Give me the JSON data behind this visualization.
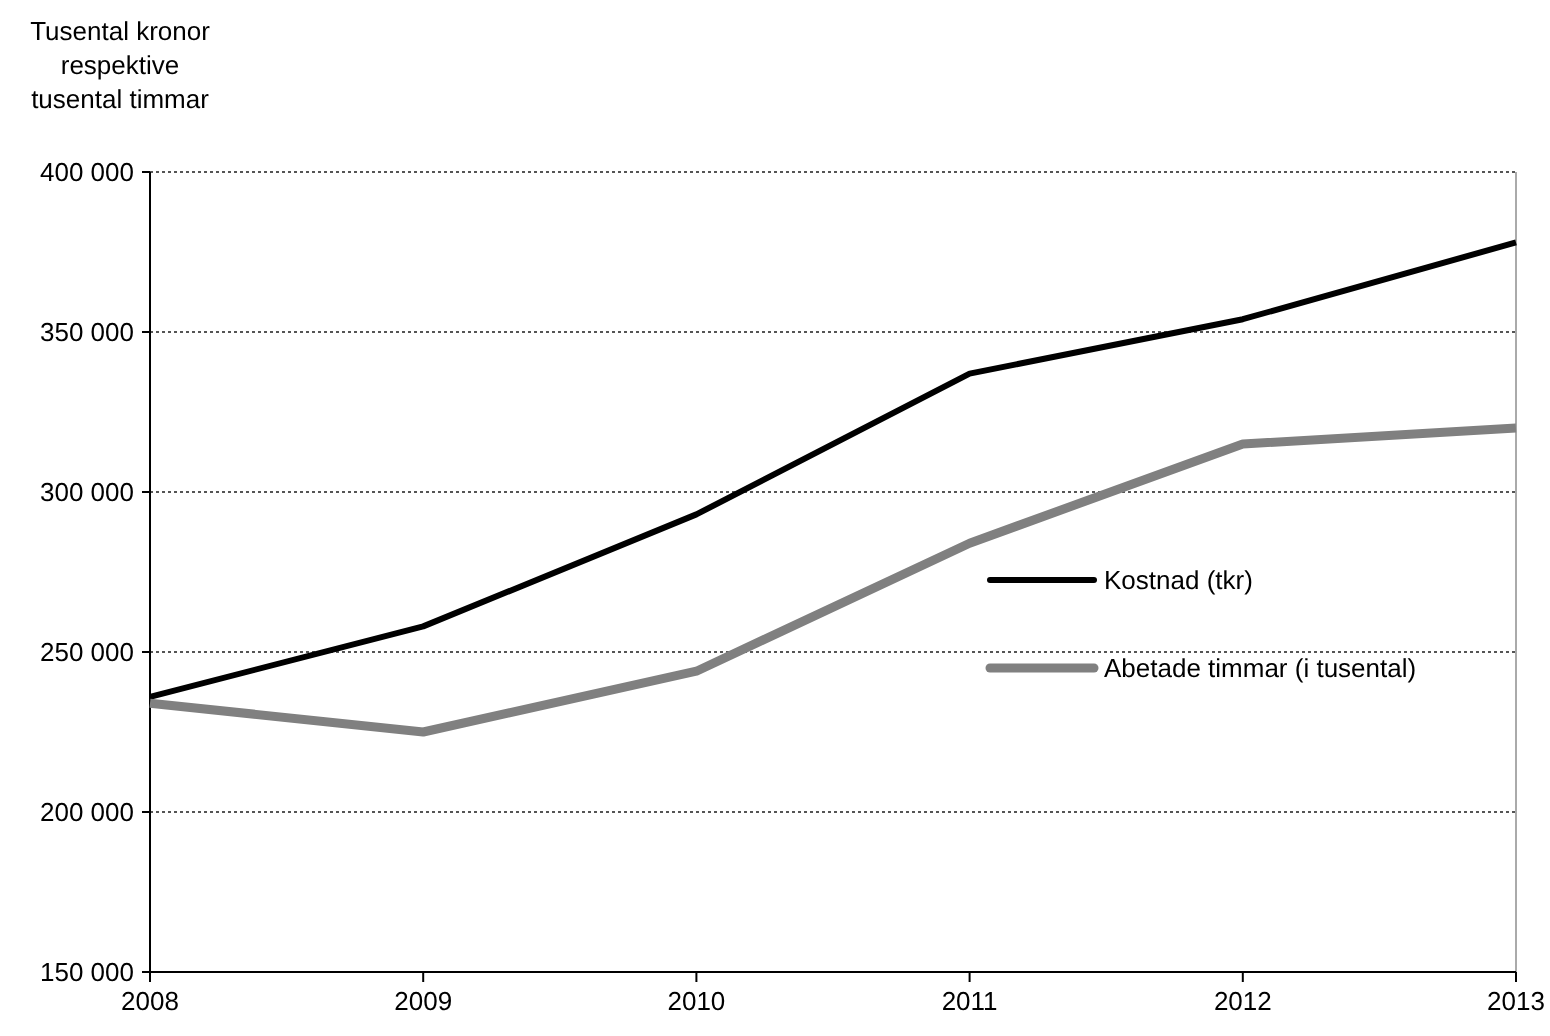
{
  "chart_data": {
    "type": "line",
    "ylabel": "Tusental kronor respektive tusental timmar",
    "x": [
      2008,
      2009,
      2010,
      2011,
      2012,
      2013
    ],
    "xlim": [
      2008,
      2013
    ],
    "xticks": [
      2008,
      2009,
      2010,
      2011,
      2012,
      2013
    ],
    "ylim": [
      150000,
      400000
    ],
    "yticks": [
      {
        "value": 150000,
        "label": "150 000"
      },
      {
        "value": 200000,
        "label": "200 000"
      },
      {
        "value": 250000,
        "label": "250 000"
      },
      {
        "value": 300000,
        "label": "300 000"
      },
      {
        "value": 350000,
        "label": "350 000"
      },
      {
        "value": 400000,
        "label": "400 000"
      }
    ],
    "grid": "y",
    "legend": "right",
    "marker": "none",
    "line_style": "solid",
    "series": [
      {
        "name": "Kostnad (tkr)",
        "color": "#000000",
        "values": [
          236000,
          258000,
          293000,
          337000,
          354000,
          378000
        ]
      },
      {
        "name": "Abetade timmar (i tusental)",
        "color": "#808080",
        "values": [
          234000,
          225000,
          244000,
          284000,
          315000,
          320000
        ]
      }
    ]
  }
}
